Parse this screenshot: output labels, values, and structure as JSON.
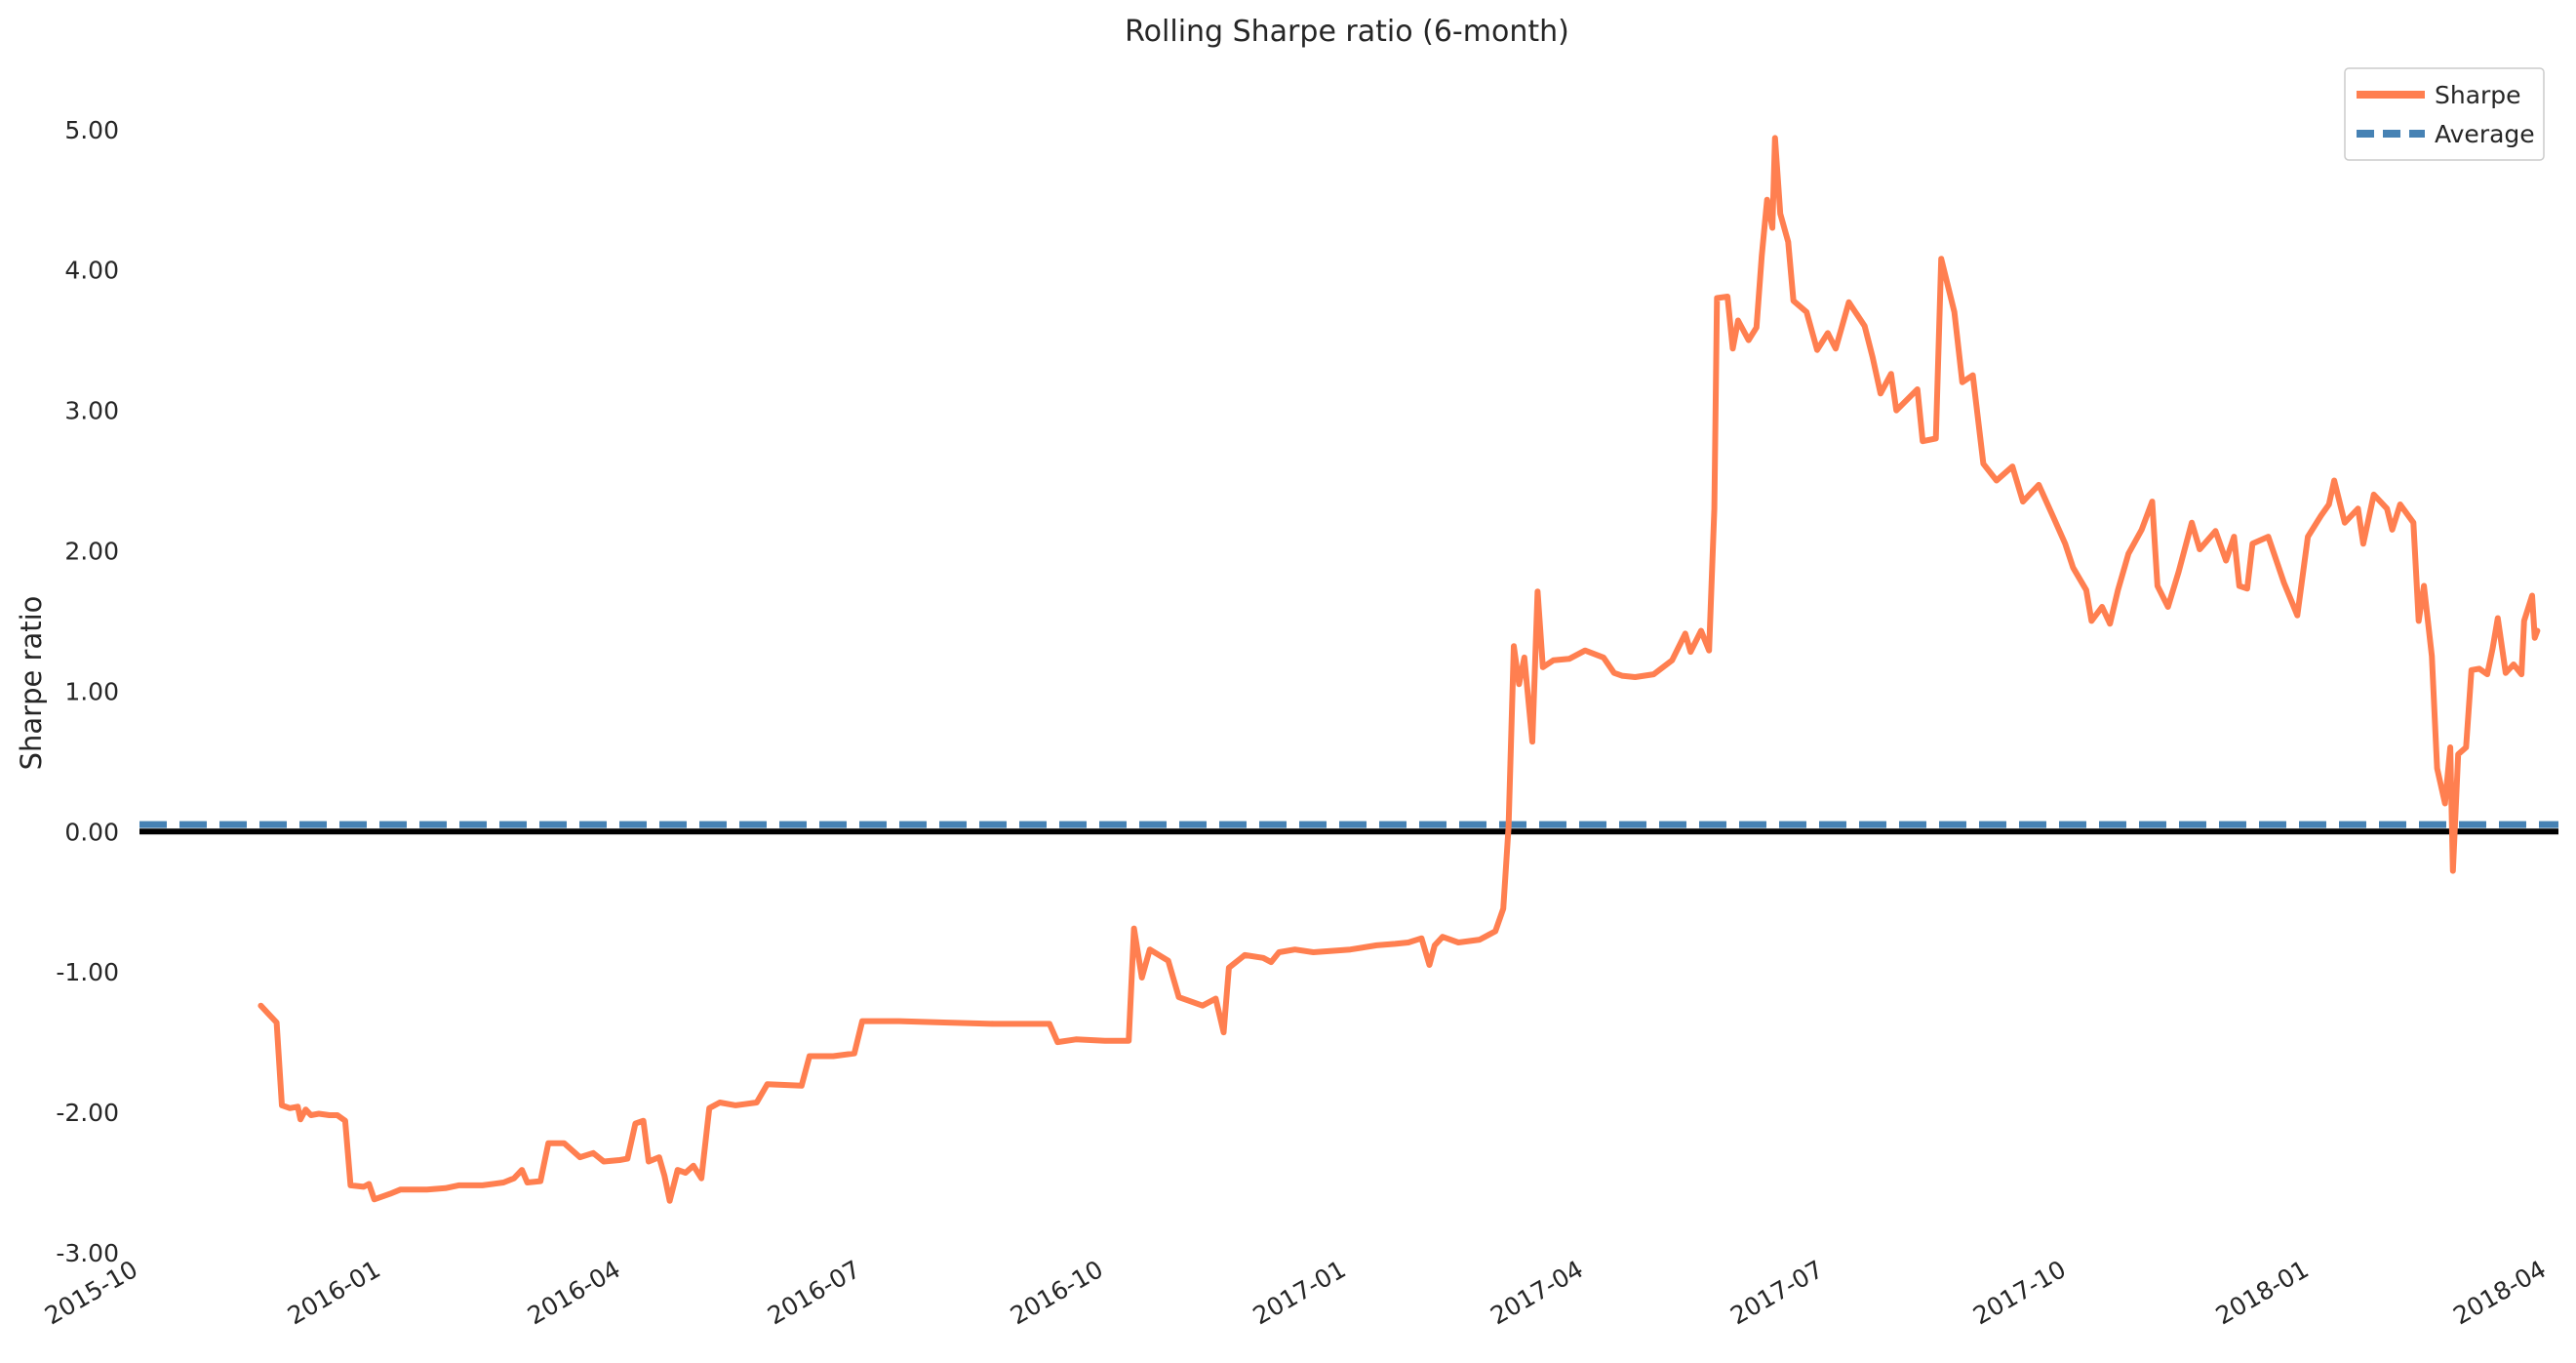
{
  "chart_data": {
    "type": "line",
    "title": "Rolling Sharpe ratio (6-month)",
    "xlabel": "",
    "ylabel": "Sharpe ratio",
    "ylim": [
      -3.0,
      5.2
    ],
    "xlim": [
      "2015-10-01",
      "2018-04-05"
    ],
    "y_ticks": [
      "5.00",
      "4.00",
      "3.00",
      "2.00",
      "1.00",
      "0.00",
      "-1.00",
      "-2.00",
      "-3.00"
    ],
    "y_tick_values": [
      5,
      4,
      3,
      2,
      1,
      0,
      -1,
      -2,
      -3
    ],
    "x_ticks": [
      "2015-10",
      "2016-01",
      "2016-04",
      "2016-07",
      "2016-10",
      "2017-01",
      "2017-04",
      "2017-07",
      "2017-10",
      "2018-01",
      "2018-04"
    ],
    "x_tick_dates": [
      "2015-10-01",
      "2016-01-01",
      "2016-04-01",
      "2016-07-01",
      "2016-10-01",
      "2017-01-01",
      "2017-04-01",
      "2017-07-01",
      "2017-10-01",
      "2018-01-01",
      "2018-04-01"
    ],
    "grid": false,
    "legend_position": "top-right",
    "legend": [
      "Sharpe",
      "Average"
    ],
    "colors": {
      "sharpe": "#ff7f50",
      "average": "#4682b4",
      "zero": "#000000"
    },
    "series": [
      {
        "name": "Sharpe",
        "style": "solid",
        "points": [
          [
            "2015-11-16",
            -1.24
          ],
          [
            "2015-11-19",
            -1.3
          ],
          [
            "2015-11-22",
            -1.36
          ],
          [
            "2015-11-24",
            -1.95
          ],
          [
            "2015-11-27",
            -1.97
          ],
          [
            "2015-11-30",
            -1.96
          ],
          [
            "2015-12-01",
            -2.05
          ],
          [
            "2015-12-03",
            -1.98
          ],
          [
            "2015-12-05",
            -2.02
          ],
          [
            "2015-12-08",
            -2.01
          ],
          [
            "2015-12-12",
            -2.02
          ],
          [
            "2015-12-15",
            -2.02
          ],
          [
            "2015-12-18",
            -2.06
          ],
          [
            "2015-12-20",
            -2.52
          ],
          [
            "2015-12-25",
            -2.53
          ],
          [
            "2015-12-27",
            -2.51
          ],
          [
            "2015-12-29",
            -2.62
          ],
          [
            "2016-01-04",
            -2.58
          ],
          [
            "2016-01-08",
            -2.55
          ],
          [
            "2016-01-18",
            -2.55
          ],
          [
            "2016-01-25",
            -2.54
          ],
          [
            "2016-01-30",
            -2.52
          ],
          [
            "2016-02-08",
            -2.52
          ],
          [
            "2016-02-16",
            -2.5
          ],
          [
            "2016-02-20",
            -2.47
          ],
          [
            "2016-02-23",
            -2.41
          ],
          [
            "2016-02-25",
            -2.5
          ],
          [
            "2016-03-01",
            -2.49
          ],
          [
            "2016-03-04",
            -2.22
          ],
          [
            "2016-03-10",
            -2.22
          ],
          [
            "2016-03-16",
            -2.32
          ],
          [
            "2016-03-21",
            -2.29
          ],
          [
            "2016-03-25",
            -2.35
          ],
          [
            "2016-03-31",
            -2.34
          ],
          [
            "2016-04-03",
            -2.33
          ],
          [
            "2016-04-06",
            -2.08
          ],
          [
            "2016-04-09",
            -2.06
          ],
          [
            "2016-04-11",
            -2.35
          ],
          [
            "2016-04-15",
            -2.32
          ],
          [
            "2016-04-17",
            -2.45
          ],
          [
            "2016-04-19",
            -2.63
          ],
          [
            "2016-04-22",
            -2.41
          ],
          [
            "2016-04-25",
            -2.43
          ],
          [
            "2016-04-28",
            -2.38
          ],
          [
            "2016-05-01",
            -2.47
          ],
          [
            "2016-05-04",
            -1.97
          ],
          [
            "2016-05-08",
            -1.93
          ],
          [
            "2016-05-14",
            -1.95
          ],
          [
            "2016-05-22",
            -1.93
          ],
          [
            "2016-05-26",
            -1.8
          ],
          [
            "2016-06-08",
            -1.81
          ],
          [
            "2016-06-11",
            -1.6
          ],
          [
            "2016-06-20",
            -1.6
          ],
          [
            "2016-06-28",
            -1.58
          ],
          [
            "2016-07-01",
            -1.35
          ],
          [
            "2016-07-15",
            -1.35
          ],
          [
            "2016-08-01",
            -1.36
          ],
          [
            "2016-08-20",
            -1.37
          ],
          [
            "2016-08-25",
            -1.37
          ],
          [
            "2016-09-05",
            -1.37
          ],
          [
            "2016-09-10",
            -1.37
          ],
          [
            "2016-09-13",
            -1.5
          ],
          [
            "2016-09-20",
            -1.48
          ],
          [
            "2016-10-01",
            -1.49
          ],
          [
            "2016-10-10",
            -1.49
          ],
          [
            "2016-10-12",
            -0.69
          ],
          [
            "2016-10-15",
            -1.04
          ],
          [
            "2016-10-18",
            -0.84
          ],
          [
            "2016-10-25",
            -0.92
          ],
          [
            "2016-10-29",
            -1.18
          ],
          [
            "2016-11-07",
            -1.24
          ],
          [
            "2016-11-12",
            -1.19
          ],
          [
            "2016-11-15",
            -1.43
          ],
          [
            "2016-11-17",
            -0.97
          ],
          [
            "2016-11-23",
            -0.88
          ],
          [
            "2016-11-30",
            -0.9
          ],
          [
            "2016-12-03",
            -0.93
          ],
          [
            "2016-12-06",
            -0.86
          ],
          [
            "2016-12-12",
            -0.84
          ],
          [
            "2016-12-19",
            -0.86
          ],
          [
            "2016-12-26",
            -0.85
          ],
          [
            "2017-01-02",
            -0.84
          ],
          [
            "2017-01-12",
            -0.81
          ],
          [
            "2017-01-19",
            -0.8
          ],
          [
            "2017-01-24",
            -0.79
          ],
          [
            "2017-01-29",
            -0.76
          ],
          [
            "2017-02-01",
            -0.95
          ],
          [
            "2017-02-03",
            -0.81
          ],
          [
            "2017-02-06",
            -0.75
          ],
          [
            "2017-02-12",
            -0.79
          ],
          [
            "2017-02-20",
            -0.77
          ],
          [
            "2017-02-26",
            -0.71
          ],
          [
            "2017-03-01",
            -0.55
          ],
          [
            "2017-03-03",
            0.03
          ],
          [
            "2017-03-05",
            1.32
          ],
          [
            "2017-03-07",
            1.05
          ],
          [
            "2017-03-09",
            1.24
          ],
          [
            "2017-03-12",
            0.64
          ],
          [
            "2017-03-14",
            1.71
          ],
          [
            "2017-03-16",
            1.17
          ],
          [
            "2017-03-20",
            1.22
          ],
          [
            "2017-03-26",
            1.23
          ],
          [
            "2017-04-01",
            1.29
          ],
          [
            "2017-04-08",
            1.24
          ],
          [
            "2017-04-12",
            1.13
          ],
          [
            "2017-04-15",
            1.11
          ],
          [
            "2017-04-20",
            1.1
          ],
          [
            "2017-04-27",
            1.12
          ],
          [
            "2017-05-04",
            1.22
          ],
          [
            "2017-05-09",
            1.41
          ],
          [
            "2017-05-11",
            1.28
          ],
          [
            "2017-05-15",
            1.43
          ],
          [
            "2017-05-18",
            1.29
          ],
          [
            "2017-05-20",
            2.3
          ],
          [
            "2017-05-21",
            3.8
          ],
          [
            "2017-05-25",
            3.81
          ],
          [
            "2017-05-27",
            3.44
          ],
          [
            "2017-05-29",
            3.64
          ],
          [
            "2017-06-02",
            3.5
          ],
          [
            "2017-06-05",
            3.59
          ],
          [
            "2017-06-07",
            4.1
          ],
          [
            "2017-06-09",
            4.5
          ],
          [
            "2017-06-11",
            4.3
          ],
          [
            "2017-06-12",
            4.94
          ],
          [
            "2017-06-14",
            4.4
          ],
          [
            "2017-06-17",
            4.2
          ],
          [
            "2017-06-19",
            3.78
          ],
          [
            "2017-06-24",
            3.7
          ],
          [
            "2017-06-28",
            3.43
          ],
          [
            "2017-07-02",
            3.55
          ],
          [
            "2017-07-05",
            3.44
          ],
          [
            "2017-07-10",
            3.77
          ],
          [
            "2017-07-16",
            3.6
          ],
          [
            "2017-07-19",
            3.38
          ],
          [
            "2017-07-22",
            3.12
          ],
          [
            "2017-07-26",
            3.26
          ],
          [
            "2017-07-28",
            3.0
          ],
          [
            "2017-08-05",
            3.15
          ],
          [
            "2017-08-07",
            2.78
          ],
          [
            "2017-08-12",
            2.8
          ],
          [
            "2017-08-14",
            4.08
          ],
          [
            "2017-08-19",
            3.7
          ],
          [
            "2017-08-22",
            3.2
          ],
          [
            "2017-08-26",
            3.25
          ],
          [
            "2017-08-30",
            2.62
          ],
          [
            "2017-09-04",
            2.5
          ],
          [
            "2017-09-10",
            2.6
          ],
          [
            "2017-09-14",
            2.35
          ],
          [
            "2017-09-20",
            2.47
          ],
          [
            "2017-09-26",
            2.22
          ],
          [
            "2017-09-30",
            2.05
          ],
          [
            "2017-10-03",
            1.88
          ],
          [
            "2017-10-08",
            1.72
          ],
          [
            "2017-10-10",
            1.5
          ],
          [
            "2017-10-14",
            1.6
          ],
          [
            "2017-10-17",
            1.48
          ],
          [
            "2017-10-20",
            1.72
          ],
          [
            "2017-10-24",
            1.98
          ],
          [
            "2017-10-29",
            2.15
          ],
          [
            "2017-11-02",
            2.35
          ],
          [
            "2017-11-04",
            1.75
          ],
          [
            "2017-11-08",
            1.6
          ],
          [
            "2017-11-12",
            1.85
          ],
          [
            "2017-11-17",
            2.2
          ],
          [
            "2017-11-20",
            2.01
          ],
          [
            "2017-11-26",
            2.14
          ],
          [
            "2017-11-30",
            1.93
          ],
          [
            "2017-12-03",
            2.1
          ],
          [
            "2017-12-05",
            1.75
          ],
          [
            "2017-12-08",
            1.73
          ],
          [
            "2017-12-10",
            2.05
          ],
          [
            "2017-12-16",
            2.1
          ],
          [
            "2017-12-22",
            1.77
          ],
          [
            "2017-12-27",
            1.54
          ],
          [
            "2017-12-31",
            2.1
          ],
          [
            "2018-01-05",
            2.25
          ],
          [
            "2018-01-08",
            2.33
          ],
          [
            "2018-01-10",
            2.5
          ],
          [
            "2018-01-14",
            2.2
          ],
          [
            "2018-01-19",
            2.3
          ],
          [
            "2018-01-21",
            2.05
          ],
          [
            "2018-01-25",
            2.4
          ],
          [
            "2018-01-30",
            2.3
          ],
          [
            "2018-02-01",
            2.15
          ],
          [
            "2018-02-04",
            2.33
          ],
          [
            "2018-02-09",
            2.2
          ],
          [
            "2018-02-11",
            1.5
          ],
          [
            "2018-02-13",
            1.75
          ],
          [
            "2018-02-16",
            1.25
          ],
          [
            "2018-02-18",
            0.45
          ],
          [
            "2018-02-21",
            0.2
          ],
          [
            "2018-02-23",
            0.6
          ],
          [
            "2018-02-24",
            -0.28
          ],
          [
            "2018-02-26",
            0.55
          ],
          [
            "2018-03-01",
            0.6
          ],
          [
            "2018-03-03",
            1.15
          ],
          [
            "2018-03-06",
            1.16
          ],
          [
            "2018-03-09",
            1.12
          ],
          [
            "2018-03-11",
            1.3
          ],
          [
            "2018-03-13",
            1.52
          ],
          [
            "2018-03-16",
            1.13
          ],
          [
            "2018-03-19",
            1.19
          ],
          [
            "2018-03-22",
            1.12
          ],
          [
            "2018-03-23",
            1.5
          ],
          [
            "2018-03-26",
            1.68
          ],
          [
            "2018-03-27",
            1.38
          ],
          [
            "2018-03-28",
            1.43
          ]
        ]
      },
      {
        "name": "Average",
        "style": "dashed",
        "value": 0.05
      }
    ],
    "reference_lines": [
      {
        "value": 0.0,
        "style": "solid"
      }
    ]
  }
}
